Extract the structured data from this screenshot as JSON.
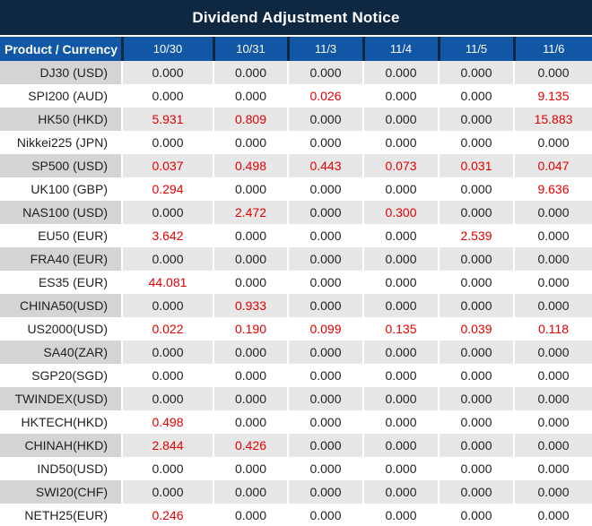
{
  "title": "Dividend Adjustment Notice",
  "colors": {
    "title_bg": "#0E2841",
    "header_bg": "#1157A6",
    "header_separator": "#0E2841",
    "row_gray": "#E7E7E7",
    "label_gray": "#D3D4D6",
    "value_black": "#1F1F1F",
    "value_red": "#E30000"
  },
  "table": {
    "columns": [
      "Product / Currency",
      "10/30",
      "10/31",
      "11/3",
      "11/4",
      "11/5",
      "11/6"
    ],
    "rows": [
      {
        "product": "DJ30 (USD)",
        "values": [
          "0.000",
          "0.000",
          "0.000",
          "0.000",
          "0.000",
          "0.000"
        ],
        "red": [
          false,
          false,
          false,
          false,
          false,
          false
        ]
      },
      {
        "product": "SPI200 (AUD)",
        "values": [
          "0.000",
          "0.000",
          "0.026",
          "0.000",
          "0.000",
          "9.135"
        ],
        "red": [
          false,
          false,
          true,
          false,
          false,
          true
        ]
      },
      {
        "product": "HK50 (HKD)",
        "values": [
          "5.931",
          "0.809",
          "0.000",
          "0.000",
          "0.000",
          "15.883"
        ],
        "red": [
          true,
          true,
          false,
          false,
          false,
          true
        ]
      },
      {
        "product": "Nikkei225 (JPN)",
        "values": [
          "0.000",
          "0.000",
          "0.000",
          "0.000",
          "0.000",
          "0.000"
        ],
        "red": [
          false,
          false,
          false,
          false,
          false,
          false
        ]
      },
      {
        "product": "SP500 (USD)",
        "values": [
          "0.037",
          "0.498",
          "0.443",
          "0.073",
          "0.031",
          "0.047"
        ],
        "red": [
          true,
          true,
          true,
          true,
          true,
          true
        ]
      },
      {
        "product": "UK100 (GBP)",
        "values": [
          "0.294",
          "0.000",
          "0.000",
          "0.000",
          "0.000",
          "9.636"
        ],
        "red": [
          true,
          false,
          false,
          false,
          false,
          true
        ]
      },
      {
        "product": "NAS100 (USD)",
        "values": [
          "0.000",
          "2.472",
          "0.000",
          "0.300",
          "0.000",
          "0.000"
        ],
        "red": [
          false,
          true,
          false,
          true,
          false,
          false
        ]
      },
      {
        "product": "EU50 (EUR)",
        "values": [
          "3.642",
          "0.000",
          "0.000",
          "0.000",
          "2.539",
          "0.000"
        ],
        "red": [
          true,
          false,
          false,
          false,
          true,
          false
        ]
      },
      {
        "product": "FRA40 (EUR)",
        "values": [
          "0.000",
          "0.000",
          "0.000",
          "0.000",
          "0.000",
          "0.000"
        ],
        "red": [
          false,
          false,
          false,
          false,
          false,
          false
        ]
      },
      {
        "product": "ES35 (EUR)",
        "values": [
          "44.081",
          "0.000",
          "0.000",
          "0.000",
          "0.000",
          "0.000"
        ],
        "red": [
          true,
          false,
          false,
          false,
          false,
          false
        ]
      },
      {
        "product": "CHINA50(USD)",
        "values": [
          "0.000",
          "0.933",
          "0.000",
          "0.000",
          "0.000",
          "0.000"
        ],
        "red": [
          false,
          true,
          false,
          false,
          false,
          false
        ]
      },
      {
        "product": "US2000(USD)",
        "values": [
          "0.022",
          "0.190",
          "0.099",
          "0.135",
          "0.039",
          "0.118"
        ],
        "red": [
          true,
          true,
          true,
          true,
          true,
          true
        ]
      },
      {
        "product": "SA40(ZAR)",
        "values": [
          "0.000",
          "0.000",
          "0.000",
          "0.000",
          "0.000",
          "0.000"
        ],
        "red": [
          false,
          false,
          false,
          false,
          false,
          false
        ]
      },
      {
        "product": "SGP20(SGD)",
        "values": [
          "0.000",
          "0.000",
          "0.000",
          "0.000",
          "0.000",
          "0.000"
        ],
        "red": [
          false,
          false,
          false,
          false,
          false,
          false
        ]
      },
      {
        "product": "TWINDEX(USD)",
        "values": [
          "0.000",
          "0.000",
          "0.000",
          "0.000",
          "0.000",
          "0.000"
        ],
        "red": [
          false,
          false,
          false,
          false,
          false,
          false
        ]
      },
      {
        "product": "HKTECH(HKD)",
        "values": [
          "0.498",
          "0.000",
          "0.000",
          "0.000",
          "0.000",
          "0.000"
        ],
        "red": [
          true,
          false,
          false,
          false,
          false,
          false
        ]
      },
      {
        "product": "CHINAH(HKD)",
        "values": [
          "2.844",
          "0.426",
          "0.000",
          "0.000",
          "0.000",
          "0.000"
        ],
        "red": [
          true,
          true,
          false,
          false,
          false,
          false
        ]
      },
      {
        "product": "IND50(USD)",
        "values": [
          "0.000",
          "0.000",
          "0.000",
          "0.000",
          "0.000",
          "0.000"
        ],
        "red": [
          false,
          false,
          false,
          false,
          false,
          false
        ]
      },
      {
        "product": "SWI20(CHF)",
        "values": [
          "0.000",
          "0.000",
          "0.000",
          "0.000",
          "0.000",
          "0.000"
        ],
        "red": [
          false,
          false,
          false,
          false,
          false,
          false
        ]
      },
      {
        "product": "NETH25(EUR)",
        "values": [
          "0.246",
          "0.000",
          "0.000",
          "0.000",
          "0.000",
          "0.000"
        ],
        "red": [
          true,
          false,
          false,
          false,
          false,
          false
        ]
      }
    ]
  }
}
